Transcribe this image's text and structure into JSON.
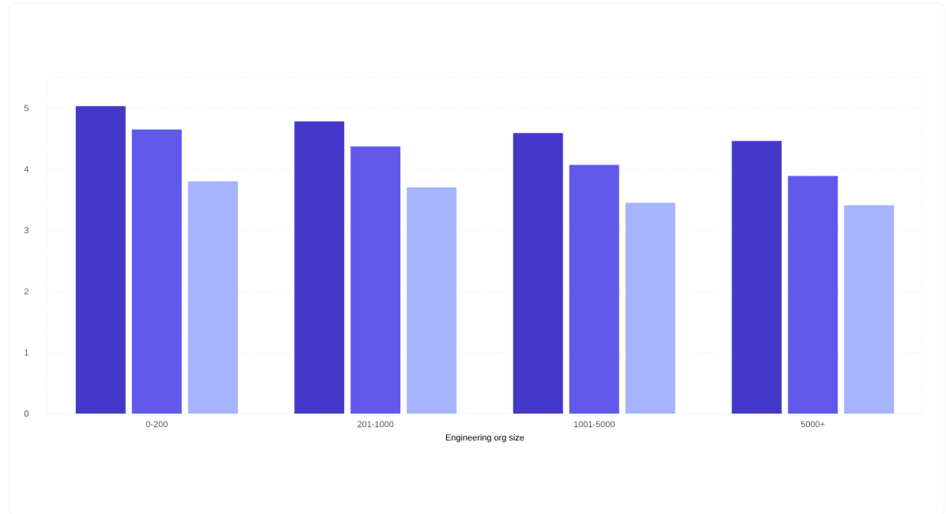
{
  "chart_data": {
    "type": "bar",
    "xlabel": "Engineering org size",
    "categories": [
      "0-200",
      "201-1000",
      "1001-5000",
      "5000+"
    ],
    "series": [
      {
        "color": "#4338ca",
        "values": [
          5.03,
          4.78,
          4.59,
          4.46
        ]
      },
      {
        "color": "#6059ec",
        "values": [
          4.65,
          4.37,
          4.07,
          3.89
        ]
      },
      {
        "color": "#a5b4fc",
        "values": [
          3.8,
          3.7,
          3.45,
          3.41
        ]
      }
    ],
    "ylim": [
      0,
      5.5
    ],
    "yticks": [
      0,
      1,
      2,
      3,
      4,
      5
    ],
    "grid": "y"
  }
}
